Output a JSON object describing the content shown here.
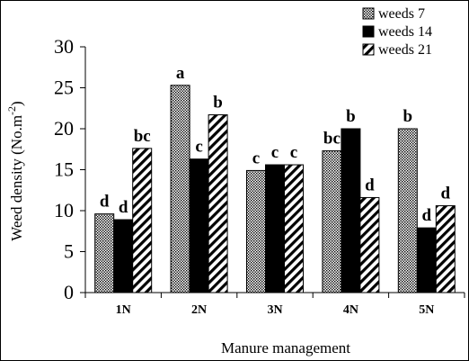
{
  "chart_data": {
    "type": "bar",
    "title": "",
    "xlabel": "Manure management",
    "ylabel": "Weed density (No.m⁻²)",
    "ylabel_parts": {
      "base": "Weed density (No.m",
      "sup": "-2",
      "close": ")"
    },
    "ylim": [
      0,
      30
    ],
    "yticks": [
      0,
      5,
      10,
      15,
      20,
      25,
      30
    ],
    "categories": [
      "1N",
      "2N",
      "3N",
      "4N",
      "5N"
    ],
    "series": [
      {
        "name": "weeds 7",
        "pattern": "dots",
        "values": [
          9.6,
          25.3,
          14.9,
          17.3,
          20.0
        ],
        "letters": [
          "d",
          "a",
          "c",
          "bc",
          "b"
        ]
      },
      {
        "name": "weeds 14",
        "pattern": "solid",
        "values": [
          8.9,
          16.3,
          15.6,
          20.0,
          7.9
        ],
        "letters": [
          "d",
          "c",
          "c",
          "b",
          "d"
        ]
      },
      {
        "name": "weeds 21",
        "pattern": "diagonal",
        "values": [
          17.6,
          21.7,
          15.6,
          11.6,
          10.6
        ],
        "letters": [
          "bc",
          "b",
          "c",
          "d",
          "d"
        ]
      }
    ],
    "grid": false,
    "legend_position": "top-right"
  }
}
